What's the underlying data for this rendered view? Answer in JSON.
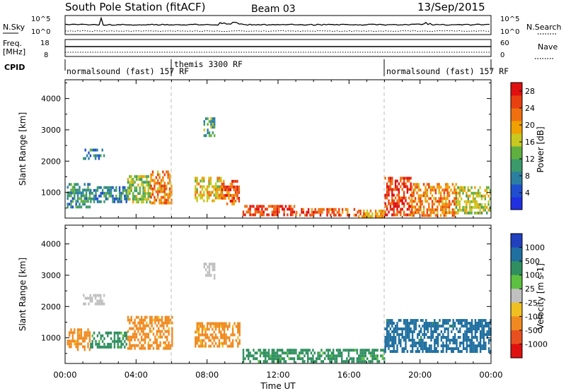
{
  "header": {
    "title": "South Pole Station (fitACF)",
    "beam": "Beam 03",
    "date": "13/Sep/2015"
  },
  "top_panels": {
    "nsky_label": "N.Sky",
    "nsearch_label": "N.Search",
    "freq_label": "Freq.",
    "freq_unit": "[MHz]",
    "nave_label": "Nave",
    "cpid_label": "CPID",
    "left_ticks_top": [
      "10^5",
      "10^0"
    ],
    "right_ticks_top": [
      "10^5",
      "10^0"
    ],
    "left_ticks_freq": [
      "18",
      "8"
    ],
    "right_ticks_nave": [
      "60",
      "0"
    ]
  },
  "cpid": {
    "segments": [
      {
        "label": "normalsound (fast) 157 RF",
        "start_hour": 0,
        "end_hour": 6
      },
      {
        "label": "themis 3300 RF",
        "start_hour": 6,
        "end_hour": 18
      },
      {
        "label": "normalsound (fast) 157 RF",
        "start_hour": 18,
        "end_hour": 24
      }
    ]
  },
  "axes": {
    "x_label": "Time UT",
    "x_ticks": [
      "00:00",
      "04:00",
      "08:00",
      "12:00",
      "16:00",
      "20:00",
      "00:00"
    ],
    "y_label": "Slant Range [km]",
    "y_ticks": [
      "1000",
      "2000",
      "3000",
      "4000"
    ]
  },
  "chart_data": [
    {
      "type": "heatmap",
      "title": "Power",
      "xlabel": "Time UT",
      "ylabel": "Slant Range [km]",
      "xlim": [
        0,
        24
      ],
      "ylim": [
        180,
        4600
      ],
      "colorbar": {
        "label": "Power [dB]",
        "ticks": [
          "4",
          "8",
          "12",
          "16",
          "20",
          "24",
          "28"
        ],
        "range": [
          0,
          30
        ]
      },
      "regions": [
        {
          "t0": 0.1,
          "t1": 1.4,
          "r0": 500,
          "r1": 1300,
          "value": 10
        },
        {
          "t0": 1.4,
          "t1": 3.5,
          "r0": 700,
          "r1": 1200,
          "value": 8
        },
        {
          "t0": 3.5,
          "t1": 4.8,
          "r0": 700,
          "r1": 1550,
          "value": 14
        },
        {
          "t0": 4.8,
          "t1": 6.0,
          "r0": 700,
          "r1": 1700,
          "value": 22
        },
        {
          "t0": 1.0,
          "t1": 2.2,
          "r0": 2100,
          "r1": 2400,
          "value": 8
        },
        {
          "t0": 7.3,
          "t1": 8.8,
          "r0": 700,
          "r1": 1500,
          "value": 18
        },
        {
          "t0": 8.8,
          "t1": 9.8,
          "r0": 600,
          "r1": 1400,
          "value": 24
        },
        {
          "t0": 7.8,
          "t1": 8.4,
          "r0": 2800,
          "r1": 3400,
          "value": 12
        },
        {
          "t0": 10.0,
          "t1": 13.0,
          "r0": 250,
          "r1": 600,
          "value": 26
        },
        {
          "t0": 13.0,
          "t1": 16.5,
          "r0": 250,
          "r1": 500,
          "value": 24
        },
        {
          "t0": 16.5,
          "t1": 18.0,
          "r0": 250,
          "r1": 450,
          "value": 20
        },
        {
          "t0": 18.0,
          "t1": 19.5,
          "r0": 300,
          "r1": 1500,
          "value": 26
        },
        {
          "t0": 19.5,
          "t1": 22.0,
          "r0": 300,
          "r1": 1300,
          "value": 22
        },
        {
          "t0": 22.0,
          "t1": 24.0,
          "r0": 300,
          "r1": 1200,
          "value": 16
        }
      ]
    },
    {
      "type": "heatmap",
      "title": "Velocity",
      "xlabel": "Time UT",
      "ylabel": "Slant Range [km]",
      "xlim": [
        0,
        24
      ],
      "ylim": [
        180,
        4600
      ],
      "colorbar": {
        "label": "Velocity [m s-1]",
        "ticks": [
          "1000",
          "500",
          "100",
          "25",
          "-25",
          "-100",
          "-500",
          "-1000"
        ]
      },
      "regions": [
        {
          "t0": 0.1,
          "t1": 1.4,
          "r0": 600,
          "r1": 1300,
          "value": -100
        },
        {
          "t0": 1.4,
          "t1": 3.5,
          "r0": 700,
          "r1": 1200,
          "value": 100
        },
        {
          "t0": 3.5,
          "t1": 6.0,
          "r0": 700,
          "r1": 1700,
          "value": -100
        },
        {
          "t0": 1.0,
          "t1": 2.2,
          "r0": 2100,
          "r1": 2400,
          "value": 0
        },
        {
          "t0": 7.3,
          "t1": 9.8,
          "r0": 700,
          "r1": 1500,
          "value": -100
        },
        {
          "t0": 7.8,
          "t1": 8.4,
          "r0": 2900,
          "r1": 3400,
          "value": 0
        },
        {
          "t0": 10.0,
          "t1": 18.0,
          "r0": 250,
          "r1": 650,
          "value": 100
        },
        {
          "t0": 18.0,
          "t1": 24.0,
          "r0": 600,
          "r1": 1600,
          "value": 500
        }
      ]
    }
  ]
}
